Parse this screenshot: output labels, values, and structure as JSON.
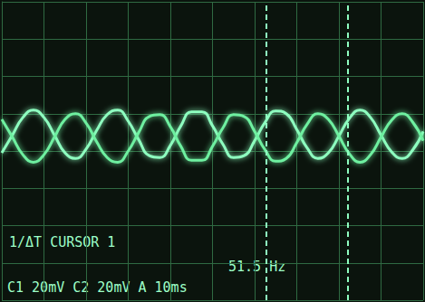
{
  "chart_data": {
    "type": "line",
    "x": [
      0,
      2.5,
      5,
      7.5,
      10,
      12.5,
      15,
      17.5,
      20,
      22.5,
      25,
      27.5,
      30,
      32.5,
      35,
      37.5,
      40,
      42.5,
      45,
      47.5,
      50,
      52.5,
      55,
      57.5,
      60,
      62.5,
      65,
      67.5,
      70,
      72.5,
      75,
      77.5,
      80,
      82.5,
      85,
      87.5,
      90,
      92.5,
      95,
      97.5,
      100
    ],
    "series": [
      {
        "name": "C1",
        "color": "#8effc0",
        "values": [
          -1,
          8.5,
          18,
          22,
          18,
          8.5,
          -1,
          -4,
          1,
          11,
          19.5,
          22,
          16,
          6,
          -2.5,
          -3.5,
          3,
          13.5,
          21,
          21,
          13.5,
          3.5,
          -3.5,
          -2.5,
          5.5,
          15.5,
          21.5,
          20,
          11.5,
          1.5,
          -4,
          -1,
          8,
          17.5,
          22,
          18,
          8.5,
          -0.5,
          -4,
          0.5,
          10.5
        ]
      },
      {
        "name": "C2",
        "color": "#6ef0a0",
        "values": [
          17,
          7.5,
          -2,
          -6,
          -2,
          7.5,
          17,
          20,
          15,
          5,
          -3.5,
          -6,
          0,
          10,
          18.5,
          19.5,
          13,
          2.5,
          -5,
          -5,
          2.5,
          12.5,
          19.5,
          18.5,
          10.5,
          0.5,
          -5.5,
          -4,
          4.5,
          14.5,
          20,
          17,
          8,
          -1.5,
          -6,
          -2,
          7.5,
          16.5,
          20,
          15.5,
          5.5
        ]
      }
    ],
    "xlim": [
      0,
      100
    ],
    "xticks": [
      0,
      10,
      20,
      30,
      40,
      50,
      60,
      70,
      80,
      90,
      100
    ],
    "ylim": [
      -80,
      80
    ],
    "yticks": [
      -80,
      -60,
      -40,
      -20,
      0,
      20,
      40,
      60,
      80
    ],
    "grid": true,
    "tick_labels": false,
    "cursors": [
      62.8,
      82.2
    ],
    "annotations": [
      "1/ΔT CURSOR 1",
      "51.5 Hz",
      "C1 20mV C2 20mV A 10ms"
    ]
  }
}
